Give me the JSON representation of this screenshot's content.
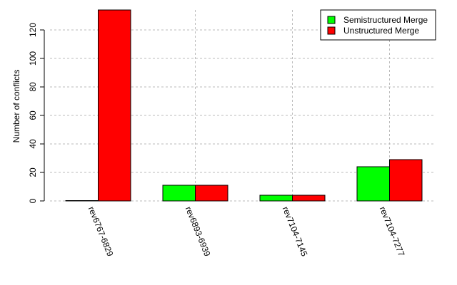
{
  "chart_data": {
    "type": "bar",
    "title": "",
    "xlabel": "",
    "ylabel": "Number of conflicts",
    "ylim": [
      0,
      134
    ],
    "yticks": [
      0,
      20,
      40,
      60,
      80,
      100,
      120
    ],
    "grid": true,
    "legend_position": "top-right",
    "categories": [
      "rev6767-6829",
      "rev6893-6939",
      "rev7104-7145",
      "rev7104-7277"
    ],
    "series": [
      {
        "name": "Semistructured Merge",
        "color": "#00ff00",
        "values": [
          0,
          11,
          4,
          24
        ]
      },
      {
        "name": "Unstructured Merge",
        "color": "#ff0000",
        "values": [
          134,
          11,
          4,
          29
        ]
      }
    ]
  }
}
